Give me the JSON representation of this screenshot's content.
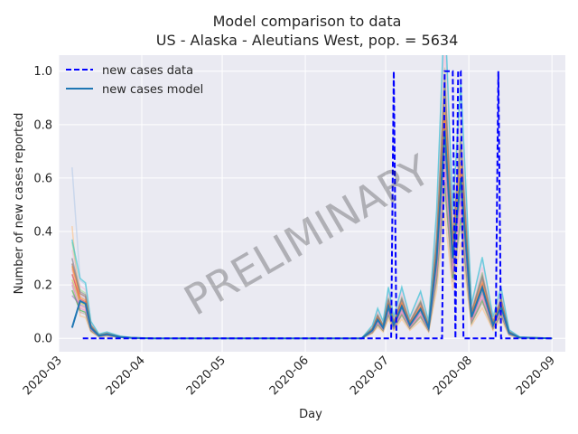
{
  "chart_data": {
    "type": "line",
    "title": "Model comparison to data",
    "subtitle": "US - Alaska - Aleutians West, pop. = 5634",
    "xlabel": "Day",
    "ylabel": "Number of new cases reported",
    "x_range": [
      "2020-03-01",
      "2020-09-06"
    ],
    "ylim": [
      -0.05,
      1.06
    ],
    "x_ticks": [
      "2020-03",
      "2020-04",
      "2020-05",
      "2020-06",
      "2020-07",
      "2020-08",
      "2020-09"
    ],
    "y_ticks": [
      "0.0",
      "0.2",
      "0.4",
      "0.6",
      "0.8",
      "1.0"
    ],
    "grid": true,
    "legend": {
      "position": "top-left",
      "entries": [
        "new cases data",
        "new cases model"
      ]
    },
    "watermark": "PRELIMINARY",
    "background_color": "#eaeaf2",
    "series": [
      {
        "name": "new cases data",
        "style": "dashed",
        "color": "#0000ff",
        "points": [
          [
            "2020-03-10",
            0
          ],
          [
            "2020-07-03",
            0
          ],
          [
            "2020-07-04",
            1
          ],
          [
            "2020-07-05",
            0
          ],
          [
            "2020-07-22",
            0
          ],
          [
            "2020-07-23",
            1
          ],
          [
            "2020-07-26",
            1
          ],
          [
            "2020-07-27",
            0
          ],
          [
            "2020-07-28",
            1
          ],
          [
            "2020-07-29",
            1
          ],
          [
            "2020-07-30",
            0
          ],
          [
            "2020-08-11",
            0
          ],
          [
            "2020-08-12",
            1
          ],
          [
            "2020-08-13",
            0
          ],
          [
            "2020-09-01",
            0
          ]
        ]
      },
      {
        "name": "new cases model",
        "style": "solid",
        "color": "#1f77b4",
        "points": [
          [
            "2020-03-06",
            0.04
          ],
          [
            "2020-03-09",
            0.14
          ],
          [
            "2020-03-11",
            0.13
          ],
          [
            "2020-03-13",
            0.04
          ],
          [
            "2020-03-16",
            0.01
          ],
          [
            "2020-03-19",
            0.015
          ],
          [
            "2020-03-24",
            0.005
          ],
          [
            "2020-03-28",
            0.002
          ],
          [
            "2020-04-05",
            0.0
          ],
          [
            "2020-06-22",
            0.0
          ],
          [
            "2020-06-26",
            0.03
          ],
          [
            "2020-06-28",
            0.07
          ],
          [
            "2020-06-30",
            0.04
          ],
          [
            "2020-07-02",
            0.12
          ],
          [
            "2020-07-04",
            0.05
          ],
          [
            "2020-07-07",
            0.12
          ],
          [
            "2020-07-10",
            0.05
          ],
          [
            "2020-07-14",
            0.11
          ],
          [
            "2020-07-17",
            0.04
          ],
          [
            "2020-07-20",
            0.3
          ],
          [
            "2020-07-23",
            0.78
          ],
          [
            "2020-07-26",
            0.3
          ],
          [
            "2020-07-29",
            0.6
          ],
          [
            "2020-08-02",
            0.08
          ],
          [
            "2020-08-06",
            0.19
          ],
          [
            "2020-08-10",
            0.05
          ],
          [
            "2020-08-13",
            0.12
          ],
          [
            "2020-08-16",
            0.02
          ],
          [
            "2020-08-20",
            0.003
          ],
          [
            "2020-09-01",
            0.0
          ]
        ]
      }
    ],
    "ensemble_colors": [
      "#aec7e8",
      "#ffbb78",
      "#98df8a",
      "#ff9896",
      "#c5b0d5",
      "#c49c94",
      "#f7b6d2",
      "#bcbd22",
      "#8c564b",
      "#2ca02c",
      "#d62728",
      "#9467bd",
      "#7f7f7f",
      "#17becf",
      "#e377c2",
      "#ff7f0e"
    ],
    "ensemble_scales": [
      1.55,
      0.6,
      1.3,
      0.85,
      1.15,
      0.7,
      1.4,
      0.95,
      1.2,
      0.75,
      1.05,
      0.9,
      1.25,
      1.6,
      0.8,
      1.1
    ],
    "ensemble_first_values": [
      0.64,
      0.42,
      0.36,
      0.26,
      0.3,
      0.2,
      0.33,
      0.22,
      0.28,
      0.18,
      0.24,
      0.16,
      0.3,
      0.37,
      0.21,
      0.27
    ]
  }
}
